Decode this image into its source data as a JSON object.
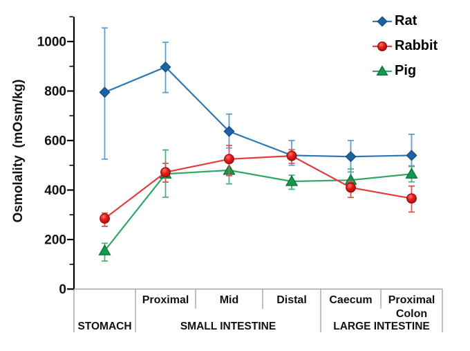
{
  "chart_data": {
    "type": "line",
    "title": "",
    "ylabel": "Osmolality  (mOsm/kg)",
    "ylim": [
      0,
      1100
    ],
    "ytick_major": 200,
    "ytick_minor": 100,
    "ytick_labels": [
      "0",
      "200",
      "400",
      "600",
      "800",
      "1000"
    ],
    "grid": false,
    "legend_position": "top-right",
    "categories": [
      "Stomach",
      "Proximal small intestine",
      "Mid small intestine",
      "Distal small intestine",
      "Caecum",
      "Proximal colon"
    ],
    "x_axis": {
      "cell_labels": [
        "",
        "Proximal",
        "Mid",
        "Distal",
        "Caecum",
        "Proximal\nColon"
      ],
      "groups": [
        {
          "label": "STOMACH",
          "start": 0,
          "end": 1
        },
        {
          "label": "SMALL INTESTINE",
          "start": 1,
          "end": 4
        },
        {
          "label": "LARGE INTESTINE",
          "start": 4,
          "end": 6
        }
      ]
    },
    "series": [
      {
        "name": "Rat",
        "marker": "diamond",
        "line_color": "#2d77b4",
        "marker_fill": "#1d62a5",
        "marker_edge": "#15497c",
        "error_color": "#5b9fd3",
        "values": [
          795,
          897,
          637,
          540,
          535,
          540
        ],
        "err_up": [
          260,
          100,
          70,
          60,
          65,
          85
        ],
        "err_down": [
          270,
          103,
          67,
          40,
          62,
          42
        ]
      },
      {
        "name": "Rabbit",
        "marker": "circle",
        "line_color": "#e43b3b",
        "marker_fill": "#dd1414",
        "marker_edge": "#8a0d0d",
        "error_color": "#e85050",
        "values": [
          285,
          472,
          525,
          538,
          410,
          366
        ],
        "err_up": [
          22,
          36,
          55,
          25,
          25,
          50
        ],
        "err_down": [
          32,
          40,
          67,
          30,
          40,
          55
        ]
      },
      {
        "name": "Pig",
        "marker": "triangle",
        "line_color": "#30a566",
        "marker_fill": "#119a4d",
        "marker_edge": "#0a6b35",
        "error_color": "#49b178",
        "values": [
          155,
          465,
          480,
          435,
          440,
          465
        ],
        "err_up": [
          30,
          97,
          55,
          25,
          45,
          30
        ],
        "err_down": [
          42,
          94,
          55,
          32,
          45,
          32
        ]
      }
    ],
    "colors": {
      "axis": "#000000",
      "table_lines": "#a6a6a6",
      "text": "#111111"
    }
  }
}
